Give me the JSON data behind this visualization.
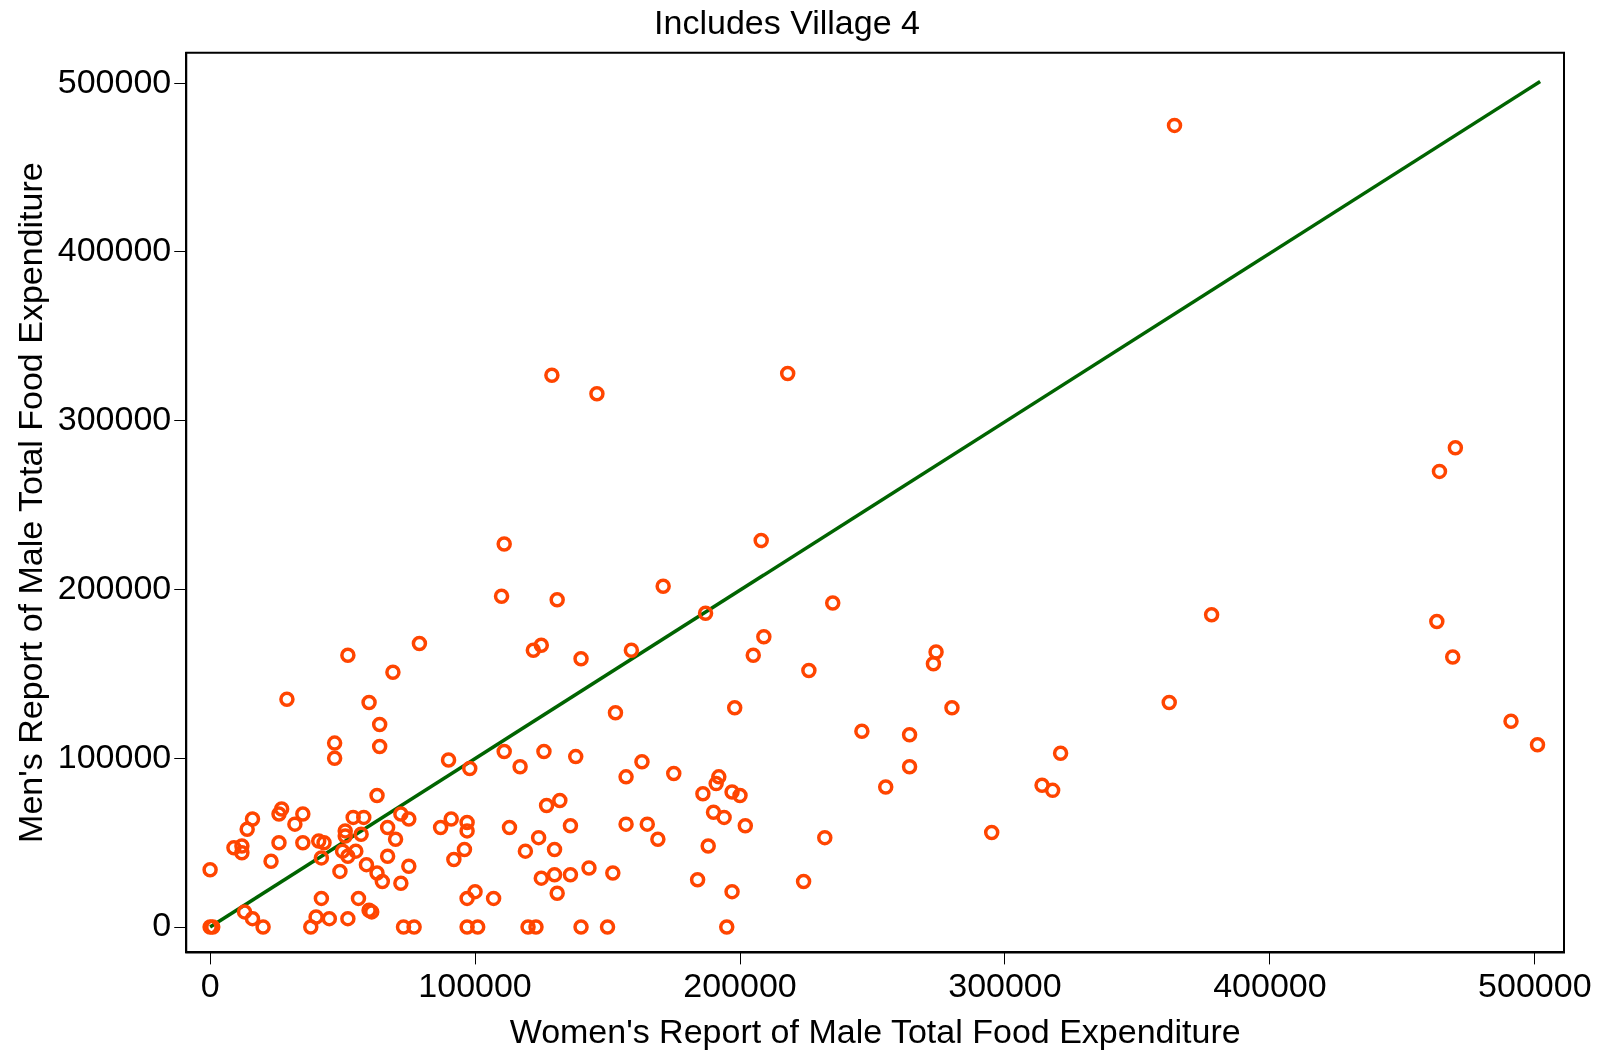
{
  "chart_data": {
    "type": "scatter",
    "title": "Includes Village 4",
    "xlabel": "Women's Report of Male Total Food Expenditure",
    "ylabel": "Men's Report of Male Total Food Expenditure",
    "xlim": [
      -9000,
      511000
    ],
    "ylim": [
      -15000,
      518000
    ],
    "xticks": [
      0,
      100000,
      200000,
      300000,
      400000,
      500000
    ],
    "yticks": [
      0,
      100000,
      200000,
      300000,
      400000,
      500000
    ],
    "grid": false,
    "legend": false,
    "series": [
      {
        "type": "scatter",
        "marker": "circle",
        "color": "#ff4500",
        "x": [
          0,
          0,
          1000,
          9000,
          12000,
          12000,
          14000,
          16000,
          13000,
          16000,
          20000,
          23000,
          26000,
          26000,
          27000,
          29000,
          32000,
          35000,
          35000,
          38000,
          40000,
          42000,
          41000,
          42000,
          43000,
          45000,
          47000,
          47000,
          49000,
          50000,
          52000,
          52000,
          51000,
          51000,
          52000,
          54000,
          55000,
          56000,
          57000,
          58000,
          59000,
          60000,
          60000,
          61000,
          63000,
          63000,
          64000,
          64000,
          65000,
          67000,
          67000,
          69000,
          70000,
          72000,
          72000,
          73000,
          75000,
          75000,
          77000,
          79000,
          87000,
          90000,
          91000,
          92000,
          96000,
          97000,
          97000,
          97000,
          97000,
          98000,
          100000,
          101000,
          107000,
          110000,
          111000,
          111000,
          113000,
          117000,
          119000,
          120000,
          122000,
          123000,
          125000,
          124000,
          125000,
          126000,
          127000,
          129000,
          130000,
          130000,
          131000,
          131000,
          132000,
          136000,
          136000,
          138000,
          140000,
          140000,
          143000,
          146000,
          150000,
          152000,
          153000,
          157000,
          157000,
          159000,
          163000,
          165000,
          169000,
          171000,
          175000,
          184000,
          186000,
          187000,
          188000,
          190000,
          191000,
          192000,
          194000,
          195000,
          197000,
          198000,
          197000,
          200000,
          202000,
          205000,
          208000,
          209000,
          218000,
          224000,
          226000,
          232000,
          235000,
          246000,
          255000,
          264000,
          264000,
          273000,
          274000,
          280000,
          295000,
          314000,
          318000,
          321000,
          362000,
          364000,
          378000,
          463000,
          464000,
          469000,
          470000,
          491000,
          501000
        ],
        "values": [
          34000,
          0,
          0,
          47000,
          48000,
          44000,
          58000,
          64000,
          9000,
          5000,
          0,
          39000,
          50000,
          67000,
          70000,
          135000,
          61000,
          67000,
          50000,
          0,
          6000,
          17000,
          51000,
          41000,
          50000,
          5000,
          109000,
          100000,
          33000,
          45000,
          161000,
          5000,
          54000,
          57000,
          42000,
          65000,
          45000,
          17000,
          55000,
          65000,
          37000,
          133000,
          10000,
          9000,
          78000,
          32000,
          120000,
          107000,
          27000,
          59000,
          42000,
          151000,
          52000,
          67000,
          26000,
          0,
          36000,
          64000,
          0,
          168000,
          59000,
          99000,
          64000,
          40000,
          46000,
          17000,
          0,
          62000,
          57000,
          94000,
          21000,
          0,
          17000,
          196000,
          104000,
          227000,
          59000,
          95000,
          45000,
          0,
          164000,
          0,
          167000,
          53000,
          29000,
          104000,
          72000,
          327000,
          46000,
          31000,
          194000,
          20000,
          75000,
          60000,
          31000,
          101000,
          159000,
          0,
          35000,
          316000,
          0,
          32000,
          127000,
          61000,
          89000,
          164000,
          98000,
          61000,
          52000,
          202000,
          91000,
          28000,
          79000,
          186000,
          48000,
          68000,
          85000,
          89000,
          65000,
          0,
          21000,
          130000,
          80000,
          78000,
          60000,
          161000,
          229000,
          172000,
          328000,
          27000,
          152000,
          53000,
          192000,
          116000,
          83000,
          114000,
          95000,
          156000,
          163000,
          130000,
          56000,
          84000,
          81000,
          103000,
          133000,
          475000,
          185000,
          181000,
          270000,
          160000,
          284000,
          122000,
          108000
        ]
      },
      {
        "type": "line",
        "marker": "none",
        "color": "#006400",
        "x": [
          0,
          502000
        ],
        "values": [
          0,
          501000
        ]
      }
    ]
  }
}
